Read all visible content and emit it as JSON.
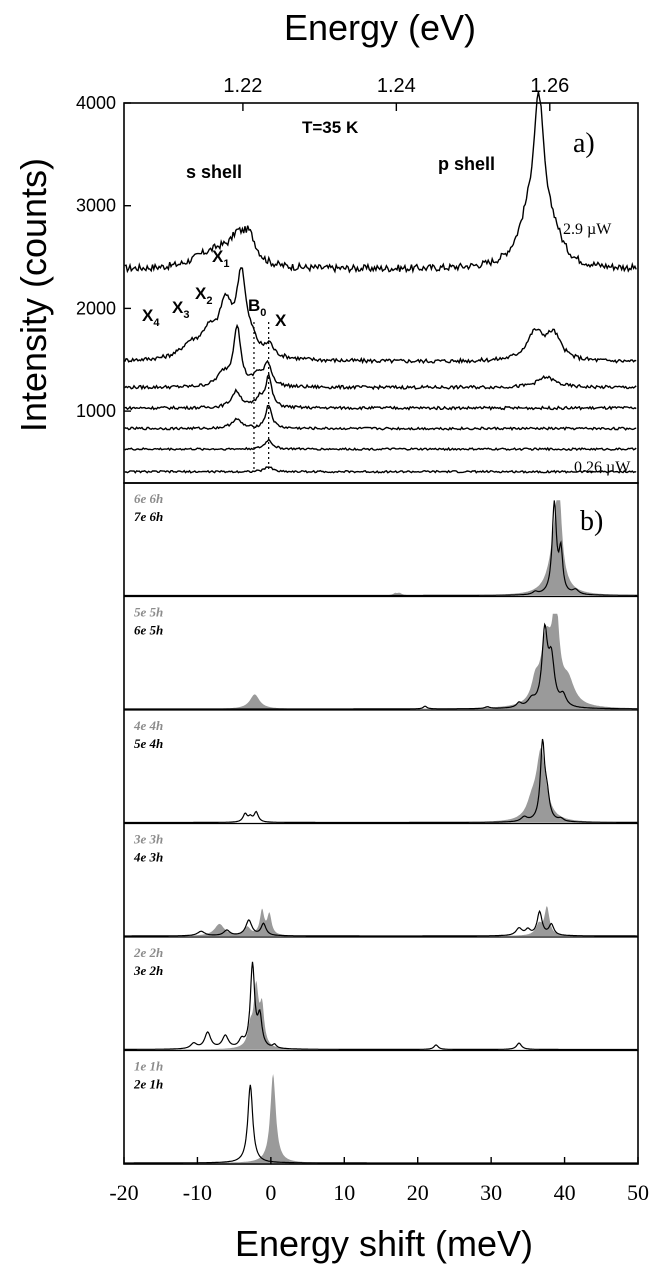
{
  "chart_data": [
    {
      "type": "line",
      "panel_label": "a)",
      "top_axis_label": "Energy (eV)",
      "top_ticks": [
        "1.22",
        "1.24",
        "1.26"
      ],
      "top_tick_values": [
        1.22,
        1.24,
        1.26
      ],
      "top_axis_range": [
        1.2045,
        1.2715
      ],
      "ylabel": "Intensity (counts)",
      "ylim": [
        300,
        4000
      ],
      "yticks": [
        1000,
        2000,
        3000,
        4000
      ],
      "yticks_labels": [
        "1000",
        "2000",
        "3000",
        "4000"
      ],
      "annotations": {
        "temperature": "T=35 K",
        "s_shell": "s shell",
        "p_shell": "p shell",
        "x1": "X",
        "x1_sub": "1",
        "x2": "X",
        "x2_sub": "2",
        "x3": "X",
        "x3_sub": "3",
        "x4": "X",
        "x4_sub": "4",
        "b0": "B",
        "b0_sub": "0",
        "x": "X",
        "power_high": "2.9 µW",
        "power_low": "0.26 µW"
      },
      "reference_lines_shift_meV": [
        -2.3,
        -0.3
      ],
      "series": [
        {
          "name": "2.9 µW",
          "baseline": 2380,
          "noise": 35,
          "peaks": [
            [
              -6.8,
              160,
              2.5
            ],
            [
              -3.0,
              280,
              1.2
            ],
            [
              -4.6,
              180,
              1.0
            ],
            [
              -9.5,
              60,
              2.0
            ],
            [
              36.5,
              1420,
              0.9
            ],
            [
              35.0,
              350,
              1.8
            ],
            [
              38.5,
              250,
              1.4
            ]
          ]
        },
        {
          "name": "",
          "baseline": 1480,
          "noise": 20,
          "peaks": [
            [
              -4.0,
              720,
              0.75
            ],
            [
              -6.2,
              420,
              1.0
            ],
            [
              -8.5,
              200,
              1.2
            ],
            [
              -11.0,
              120,
              1.5
            ],
            [
              -0.2,
              110,
              0.6
            ],
            [
              -2.5,
              80,
              0.6
            ],
            [
              36.0,
              270,
              1.4
            ],
            [
              38.5,
              240,
              1.2
            ],
            [
              -5.0,
              120,
              3.5
            ]
          ]
        },
        {
          "name": "",
          "baseline": 1230,
          "noise": 16,
          "peaks": [
            [
              -4.6,
              580,
              0.6
            ],
            [
              -6.5,
              120,
              1.0
            ],
            [
              -0.4,
              220,
              0.6
            ],
            [
              -1.8,
              110,
              0.7
            ],
            [
              37.5,
              100,
              1.5
            ]
          ]
        },
        {
          "name": "",
          "baseline": 1030,
          "noise": 14,
          "peaks": [
            [
              -4.7,
              160,
              0.8
            ],
            [
              -0.3,
              300,
              0.5
            ],
            [
              -1.5,
              90,
              0.6
            ]
          ]
        },
        {
          "name": "",
          "baseline": 830,
          "noise": 12,
          "peaks": [
            [
              -4.7,
              90,
              0.8
            ],
            [
              -0.3,
              230,
              0.5
            ]
          ]
        },
        {
          "name": "",
          "baseline": 630,
          "noise": 10,
          "peaks": [
            [
              -0.3,
              90,
              0.6
            ]
          ]
        },
        {
          "name": "0.26 µW",
          "baseline": 410,
          "noise": 10,
          "peaks": [
            [
              -0.3,
              50,
              0.6
            ]
          ]
        }
      ]
    },
    {
      "type": "area",
      "panel_label": "b)",
      "xlabel": "Energy shift (meV)",
      "xlim": [
        -20,
        50
      ],
      "xticks": [
        -20,
        -10,
        0,
        10,
        20,
        30,
        40,
        50
      ],
      "xticks_labels": [
        "-20",
        "-10",
        "0",
        "10",
        "20",
        "30",
        "40",
        "50"
      ],
      "panels": [
        {
          "label_gray": "6e 6h",
          "label_black": "7e 6h",
          "gray_peaks": [
            [
              39.2,
              0.92,
              0.45
            ],
            [
              38.7,
              0.5,
              1.0
            ],
            [
              17.5,
              0.025,
              0.4
            ],
            [
              16.9,
              0.02,
              0.3
            ]
          ],
          "black_peaks": [
            [
              38.6,
              1.0,
              0.35
            ],
            [
              39.5,
              0.45,
              0.3
            ],
            [
              41.5,
              0.05,
              0.5
            ],
            [
              36.0,
              0.03,
              0.4
            ]
          ]
        },
        {
          "label_gray": "5e 5h",
          "label_black": "6e 5h",
          "gray_peaks": [
            [
              38.8,
              0.98,
              0.55
            ],
            [
              37.5,
              0.7,
              0.9
            ],
            [
              40.5,
              0.25,
              1.0
            ],
            [
              -2.2,
              0.16,
              0.8
            ],
            [
              36.0,
              0.2,
              0.6
            ]
          ],
          "black_peaks": [
            [
              37.3,
              0.8,
              0.45
            ],
            [
              38.2,
              0.5,
              0.5
            ],
            [
              39.8,
              0.12,
              0.5
            ],
            [
              35.5,
              0.08,
              0.6
            ],
            [
              33.8,
              0.05,
              0.4
            ],
            [
              21.0,
              0.03,
              0.3
            ],
            [
              29.5,
              0.02,
              0.4
            ]
          ]
        },
        {
          "label_gray": "4e 4h",
          "label_black": "5e 4h",
          "gray_peaks": [
            [
              36.8,
              0.78,
              0.8
            ],
            [
              35.5,
              0.15,
              0.8
            ]
          ],
          "black_peaks": [
            [
              37.0,
              0.84,
              0.35
            ],
            [
              37.6,
              0.25,
              0.4
            ],
            [
              34.5,
              0.05,
              0.5
            ],
            [
              -3.5,
              0.09,
              0.35
            ],
            [
              -2.0,
              0.11,
              0.35
            ],
            [
              -2.8,
              0.05,
              0.3
            ],
            [
              39.5,
              0.03,
              0.4
            ]
          ]
        },
        {
          "label_gray": "3e 3h",
          "label_black": "4e 3h",
          "gray_peaks": [
            [
              -1.2,
              0.27,
              0.35
            ],
            [
              -0.2,
              0.23,
              0.35
            ],
            [
              -7.0,
              0.13,
              0.8
            ],
            [
              -3.2,
              0.09,
              0.5
            ],
            [
              37.6,
              0.31,
              0.4
            ],
            [
              36.5,
              0.12,
              0.5
            ]
          ],
          "black_peaks": [
            [
              -3.0,
              0.17,
              0.5
            ],
            [
              -1.0,
              0.13,
              0.4
            ],
            [
              -9.5,
              0.05,
              0.6
            ],
            [
              -6.0,
              0.06,
              0.5
            ],
            [
              36.6,
              0.26,
              0.4
            ],
            [
              38.2,
              0.12,
              0.4
            ],
            [
              33.8,
              0.08,
              0.5
            ],
            [
              35.0,
              0.06,
              0.4
            ]
          ]
        },
        {
          "label_gray": "2e 2h",
          "label_black": "3e 2h",
          "gray_peaks": [
            [
              -2.0,
              0.65,
              0.4
            ],
            [
              -1.2,
              0.42,
              0.35
            ],
            [
              -2.8,
              0.2,
              0.4
            ]
          ],
          "black_peaks": [
            [
              -2.5,
              0.92,
              0.35
            ],
            [
              -1.5,
              0.33,
              0.35
            ],
            [
              -8.6,
              0.18,
              0.5
            ],
            [
              -6.2,
              0.14,
              0.5
            ],
            [
              -10.5,
              0.06,
              0.5
            ],
            [
              -4.0,
              0.08,
              0.4
            ],
            [
              22.5,
              0.05,
              0.35
            ],
            [
              33.8,
              0.07,
              0.4
            ],
            [
              0.5,
              0.04,
              0.3
            ]
          ]
        },
        {
          "label_gray": "1e 1h",
          "label_black": "2e 1h",
          "gray_peaks": [
            [
              0.3,
              0.98,
              0.45
            ]
          ],
          "black_peaks": [
            [
              -2.8,
              0.86,
              0.4
            ]
          ]
        }
      ]
    }
  ]
}
